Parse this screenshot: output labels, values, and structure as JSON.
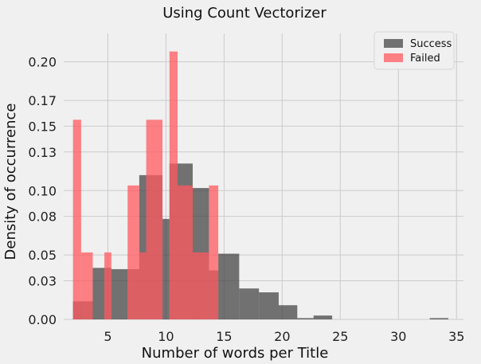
{
  "chart_data": {
    "type": "bar",
    "title": "Using Count Vectorizer",
    "xlabel": "Number of words per Title",
    "ylabel": "Density of occurrence",
    "xlim": [
      1.2,
      35.6
    ],
    "ylim": [
      0,
      0.222
    ],
    "xticks": [
      5,
      10,
      15,
      20,
      25,
      30,
      35
    ],
    "yticks": [
      0.0,
      0.03,
      0.05,
      0.08,
      0.1,
      0.13,
      0.15,
      0.17,
      0.2
    ],
    "ytick_labels": [
      "0.00",
      "0.03",
      "0.05",
      "0.08",
      "0.10",
      "0.13",
      "0.15",
      "0.17",
      "0.20"
    ],
    "grid": true,
    "legend_position": "top-right",
    "colors": {
      "success": "#3a3a3a",
      "failed": "#ff5a5f",
      "background": "#f0f0f0",
      "grid": "#cbcbcb"
    },
    "series": [
      {
        "name": "Success",
        "opacity": 0.7,
        "bins": [
          {
            "x0": 2.0,
            "x1": 3.7,
            "value": 0.014
          },
          {
            "x0": 3.7,
            "x1": 4.7,
            "value": 0.04
          },
          {
            "x0": 4.7,
            "x1": 5.3,
            "value": 0.04
          },
          {
            "x0": 5.3,
            "x1": 6.7,
            "value": 0.039
          },
          {
            "x0": 6.7,
            "x1": 7.7,
            "value": 0.039
          },
          {
            "x0": 7.7,
            "x1": 8.3,
            "value": 0.112
          },
          {
            "x0": 8.3,
            "x1": 9.7,
            "value": 0.112
          },
          {
            "x0": 9.7,
            "x1": 10.3,
            "value": 0.078
          },
          {
            "x0": 10.3,
            "x1": 12.3,
            "value": 0.121
          },
          {
            "x0": 12.3,
            "x1": 13.7,
            "value": 0.102
          },
          {
            "x0": 13.7,
            "x1": 14.5,
            "value": 0.038
          },
          {
            "x0": 14.5,
            "x1": 16.3,
            "value": 0.051
          },
          {
            "x0": 16.3,
            "x1": 18.0,
            "value": 0.024
          },
          {
            "x0": 18.0,
            "x1": 19.7,
            "value": 0.021
          },
          {
            "x0": 19.7,
            "x1": 21.3,
            "value": 0.011
          },
          {
            "x0": 21.3,
            "x1": 22.7,
            "value": 0.001
          },
          {
            "x0": 22.7,
            "x1": 24.3,
            "value": 0.003
          },
          {
            "x0": 32.7,
            "x1": 34.3,
            "value": 0.001
          }
        ]
      },
      {
        "name": "Failed",
        "opacity": 0.75,
        "bins": [
          {
            "x0": 2.0,
            "x1": 2.7,
            "value": 0.155
          },
          {
            "x0": 2.7,
            "x1": 3.7,
            "value": 0.052
          },
          {
            "x0": 4.7,
            "x1": 5.3,
            "value": 0.052
          },
          {
            "x0": 6.7,
            "x1": 7.7,
            "value": 0.104
          },
          {
            "x0": 7.7,
            "x1": 8.3,
            "value": 0.052
          },
          {
            "x0": 8.3,
            "x1": 9.7,
            "value": 0.155
          },
          {
            "x0": 10.3,
            "x1": 11.0,
            "value": 0.208
          },
          {
            "x0": 11.0,
            "x1": 12.3,
            "value": 0.104
          },
          {
            "x0": 12.3,
            "x1": 13.7,
            "value": 0.052
          },
          {
            "x0": 13.7,
            "x1": 14.5,
            "value": 0.104
          }
        ]
      }
    ]
  }
}
